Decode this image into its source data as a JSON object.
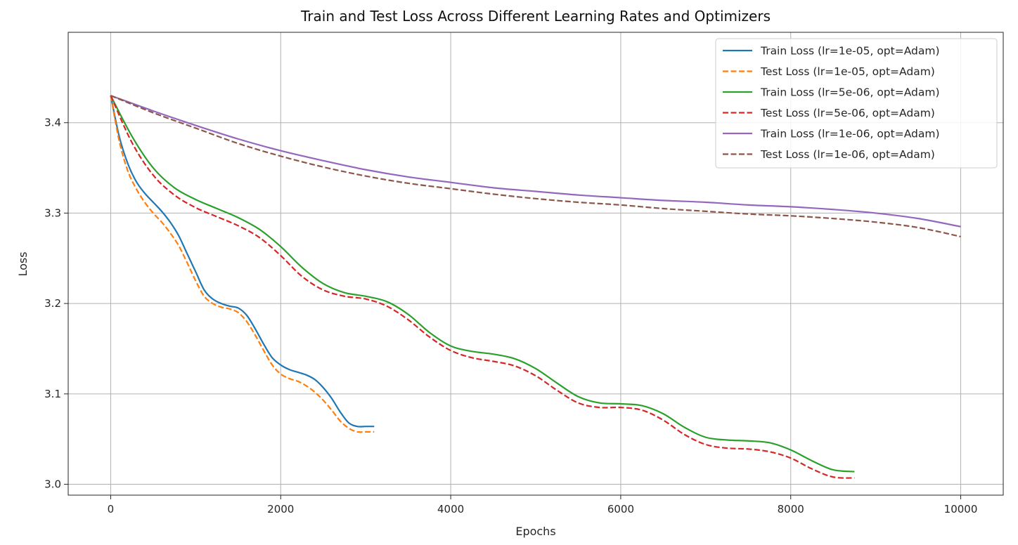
{
  "chart_data": {
    "type": "line",
    "title": "Train and Test Loss Across Different Learning Rates and Optimizers",
    "xlabel": "Epochs",
    "ylabel": "Loss",
    "xlim": [
      -500,
      10500
    ],
    "ylim": [
      2.988,
      3.5
    ],
    "xticks": [
      0,
      2000,
      4000,
      6000,
      8000,
      10000
    ],
    "xtick_labels": [
      "0",
      "2000",
      "4000",
      "6000",
      "8000",
      "10000"
    ],
    "yticks": [
      3.0,
      3.1,
      3.2,
      3.3,
      3.4
    ],
    "ytick_labels": [
      "3.0",
      "3.1",
      "3.2",
      "3.3",
      "3.4"
    ],
    "grid": true,
    "legend_position": "top-right",
    "series": [
      {
        "name": "Train Loss (lr=1e-05, opt=Adam)",
        "color": "#1f77b4",
        "dash": "solid",
        "x": [
          0,
          100,
          200,
          300,
          400,
          500,
          600,
          700,
          800,
          900,
          1000,
          1100,
          1200,
          1300,
          1400,
          1500,
          1600,
          1700,
          1800,
          1900,
          2000,
          2100,
          2200,
          2300,
          2400,
          2500,
          2600,
          2700,
          2800,
          2900,
          3000,
          3100
        ],
        "y": [
          3.43,
          3.385,
          3.355,
          3.335,
          3.322,
          3.312,
          3.302,
          3.29,
          3.275,
          3.255,
          3.235,
          3.215,
          3.205,
          3.2,
          3.197,
          3.195,
          3.187,
          3.172,
          3.155,
          3.14,
          3.132,
          3.127,
          3.124,
          3.121,
          3.116,
          3.107,
          3.095,
          3.08,
          3.068,
          3.064,
          3.064,
          3.064
        ]
      },
      {
        "name": "Test Loss (lr=1e-05, opt=Adam)",
        "color": "#ff7f0e",
        "dash": "dashed",
        "x": [
          0,
          100,
          200,
          300,
          400,
          500,
          600,
          700,
          800,
          900,
          1000,
          1100,
          1200,
          1300,
          1400,
          1500,
          1600,
          1700,
          1800,
          1900,
          2000,
          2100,
          2200,
          2300,
          2400,
          2500,
          2600,
          2700,
          2800,
          2900,
          3000,
          3100
        ],
        "y": [
          3.43,
          3.38,
          3.347,
          3.327,
          3.312,
          3.3,
          3.29,
          3.278,
          3.264,
          3.245,
          3.225,
          3.208,
          3.2,
          3.196,
          3.194,
          3.19,
          3.18,
          3.165,
          3.148,
          3.132,
          3.122,
          3.117,
          3.114,
          3.109,
          3.102,
          3.093,
          3.082,
          3.07,
          3.062,
          3.058,
          3.058,
          3.058
        ]
      },
      {
        "name": "Train Loss (lr=5e-06, opt=Adam)",
        "color": "#2ca02c",
        "dash": "solid",
        "x": [
          0,
          250,
          500,
          750,
          1000,
          1250,
          1500,
          1750,
          2000,
          2250,
          2500,
          2750,
          3000,
          3250,
          3500,
          3750,
          4000,
          4250,
          4500,
          4750,
          5000,
          5250,
          5500,
          5750,
          6000,
          6250,
          6500,
          6750,
          7000,
          7250,
          7500,
          7750,
          8000,
          8250,
          8500,
          8750
        ],
        "y": [
          3.43,
          3.385,
          3.35,
          3.328,
          3.315,
          3.305,
          3.295,
          3.282,
          3.263,
          3.24,
          3.222,
          3.212,
          3.208,
          3.202,
          3.188,
          3.168,
          3.153,
          3.147,
          3.144,
          3.139,
          3.128,
          3.112,
          3.097,
          3.09,
          3.089,
          3.087,
          3.078,
          3.063,
          3.052,
          3.049,
          3.048,
          3.046,
          3.038,
          3.026,
          3.016,
          3.014
        ]
      },
      {
        "name": "Test Loss (lr=5e-06, opt=Adam)",
        "color": "#d62728",
        "dash": "dashed",
        "x": [
          0,
          250,
          500,
          750,
          1000,
          1250,
          1500,
          1750,
          2000,
          2250,
          2500,
          2750,
          3000,
          3250,
          3500,
          3750,
          4000,
          4250,
          4500,
          4750,
          5000,
          5250,
          5500,
          5750,
          6000,
          6250,
          6500,
          6750,
          7000,
          7250,
          7500,
          7750,
          8000,
          8250,
          8500,
          8750
        ],
        "y": [
          3.43,
          3.378,
          3.342,
          3.32,
          3.306,
          3.296,
          3.286,
          3.273,
          3.253,
          3.23,
          3.215,
          3.208,
          3.205,
          3.197,
          3.182,
          3.163,
          3.148,
          3.14,
          3.136,
          3.131,
          3.12,
          3.104,
          3.09,
          3.085,
          3.085,
          3.082,
          3.071,
          3.055,
          3.044,
          3.04,
          3.039,
          3.036,
          3.029,
          3.017,
          3.008,
          3.007
        ]
      },
      {
        "name": "Train Loss (lr=1e-06, opt=Adam)",
        "color": "#9467bd",
        "dash": "solid",
        "x": [
          0,
          500,
          1000,
          1500,
          2000,
          2500,
          3000,
          3500,
          4000,
          4500,
          5000,
          5500,
          6000,
          6500,
          7000,
          7500,
          8000,
          8500,
          9000,
          9500,
          10000
        ],
        "y": [
          3.43,
          3.413,
          3.397,
          3.382,
          3.369,
          3.358,
          3.348,
          3.34,
          3.334,
          3.328,
          3.324,
          3.32,
          3.317,
          3.314,
          3.312,
          3.309,
          3.307,
          3.304,
          3.3,
          3.294,
          3.285
        ]
      },
      {
        "name": "Test Loss (lr=1e-06, opt=Adam)",
        "color": "#8c564b",
        "dash": "dashed",
        "x": [
          0,
          500,
          1000,
          1500,
          2000,
          2500,
          3000,
          3500,
          4000,
          4500,
          5000,
          5500,
          6000,
          6500,
          7000,
          7500,
          8000,
          8500,
          9000,
          9500,
          10000
        ],
        "y": [
          3.43,
          3.411,
          3.394,
          3.377,
          3.363,
          3.351,
          3.341,
          3.333,
          3.327,
          3.321,
          3.316,
          3.312,
          3.309,
          3.305,
          3.302,
          3.299,
          3.297,
          3.294,
          3.29,
          3.284,
          3.274
        ]
      }
    ]
  }
}
